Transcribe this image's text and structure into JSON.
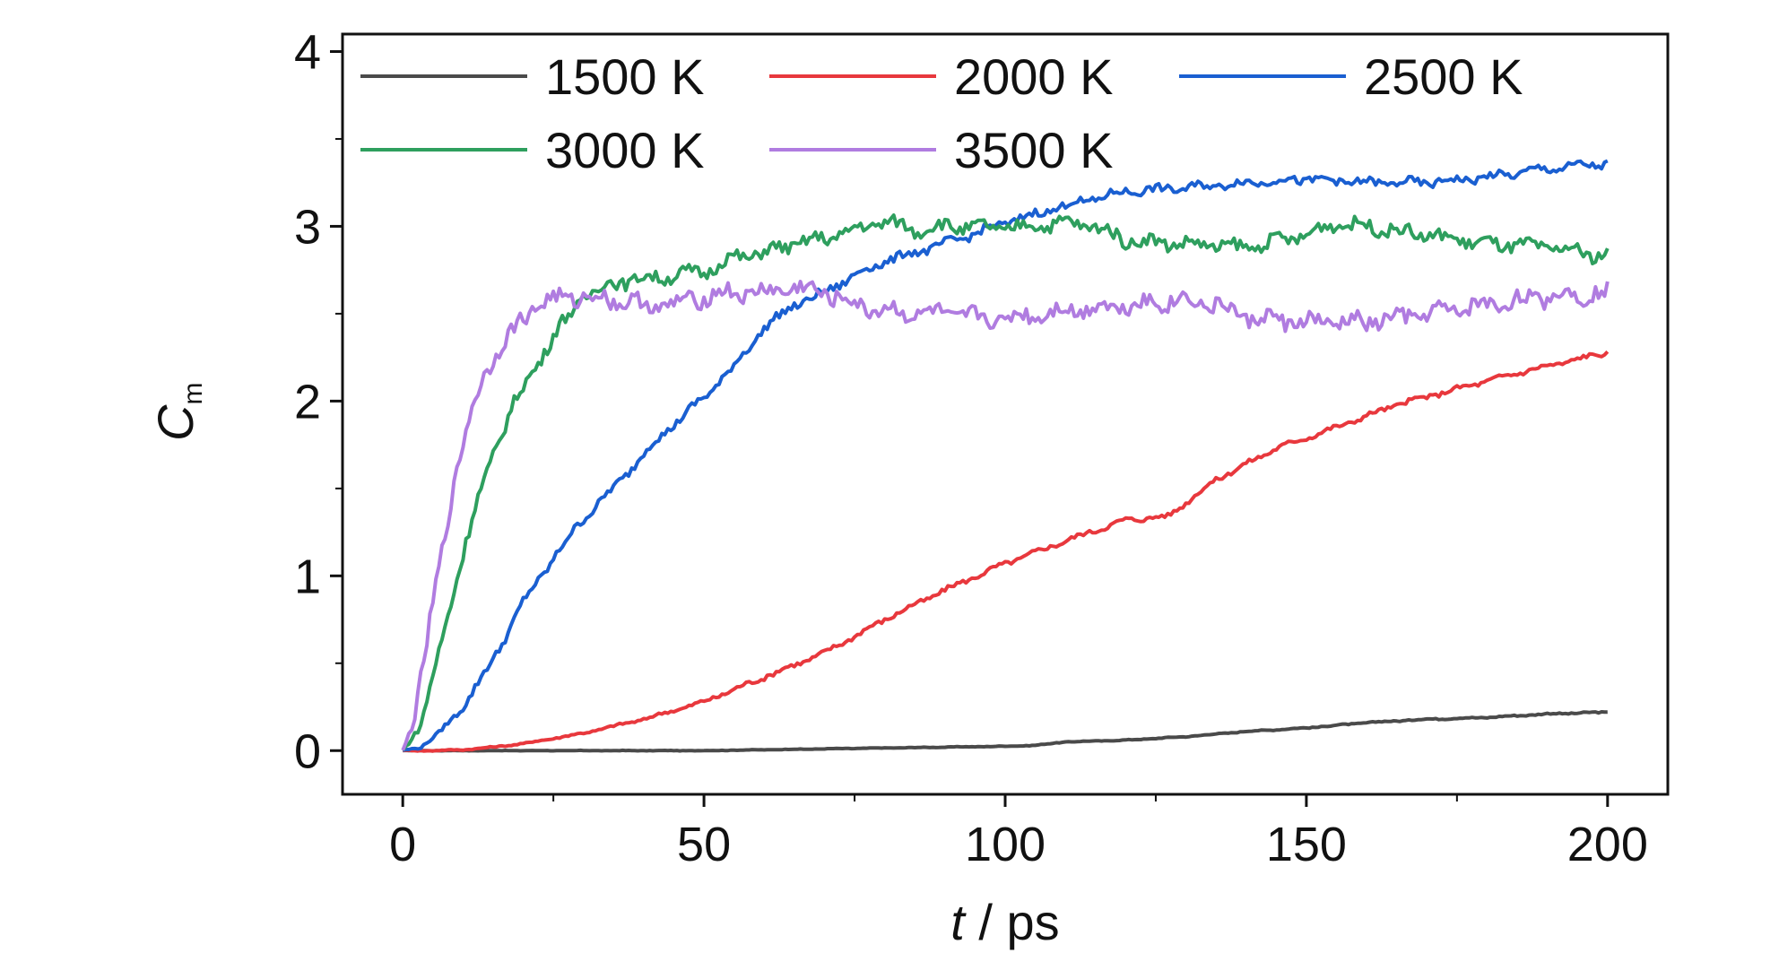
{
  "chart_data": {
    "type": "line",
    "xlabel": {
      "var": "t",
      "unit": " / ps"
    },
    "ylabel": {
      "var": "C",
      "sub": "m"
    },
    "xlim": [
      -10,
      210
    ],
    "ylim": [
      -0.25,
      4.1
    ],
    "x_ticks": [
      0,
      50,
      100,
      150,
      200
    ],
    "x_tick_labels": [
      "0",
      "50",
      "100",
      "150",
      "200"
    ],
    "y_ticks": [
      0,
      1,
      2,
      3,
      4
    ],
    "y_tick_labels": [
      "0",
      "1",
      "2",
      "3",
      "4"
    ],
    "grid": false,
    "legend_position": "top-left",
    "series": [
      {
        "name": "1500 K",
        "color": "#4a4a4a",
        "x": [
          0,
          10,
          20,
          30,
          40,
          50,
          60,
          70,
          80,
          90,
          100,
          105,
          110,
          120,
          130,
          140,
          150,
          160,
          170,
          180,
          190,
          200
        ],
        "y": [
          0,
          0,
          0,
          0,
          0,
          0,
          0.005,
          0.01,
          0.015,
          0.02,
          0.025,
          0.03,
          0.05,
          0.06,
          0.08,
          0.11,
          0.13,
          0.16,
          0.18,
          0.19,
          0.21,
          0.22
        ]
      },
      {
        "name": "2000 K",
        "color": "#e8383d",
        "x": [
          0,
          5,
          10,
          15,
          20,
          30,
          40,
          50,
          60,
          70,
          80,
          90,
          100,
          110,
          120,
          127,
          135,
          145,
          155,
          165,
          175,
          185,
          195,
          200
        ],
        "y": [
          0,
          0,
          0.005,
          0.02,
          0.04,
          0.1,
          0.18,
          0.28,
          0.42,
          0.56,
          0.75,
          0.92,
          1.07,
          1.2,
          1.32,
          1.34,
          1.55,
          1.73,
          1.85,
          1.98,
          2.07,
          2.16,
          2.24,
          2.28
        ]
      },
      {
        "name": "2500 K",
        "color": "#1a5fd1",
        "x": [
          0,
          3,
          6,
          10,
          15,
          20,
          25,
          30,
          35,
          40,
          45,
          50,
          55,
          60,
          65,
          70,
          75,
          80,
          90,
          100,
          110,
          120,
          130,
          140,
          150,
          160,
          170,
          180,
          190,
          200
        ],
        "y": [
          0,
          0.02,
          0.1,
          0.25,
          0.52,
          0.85,
          1.1,
          1.33,
          1.5,
          1.7,
          1.87,
          2.02,
          2.2,
          2.42,
          2.55,
          2.62,
          2.72,
          2.8,
          2.9,
          3.02,
          3.12,
          3.2,
          3.22,
          3.25,
          3.27,
          3.25,
          3.25,
          3.28,
          3.33,
          3.36
        ]
      },
      {
        "name": "3000 K",
        "color": "#2e9f5e",
        "x": [
          0,
          3,
          6,
          9,
          12,
          15,
          18,
          22,
          26,
          30,
          35,
          40,
          45,
          50,
          55,
          60,
          65,
          70,
          75,
          80,
          85,
          90,
          100,
          110,
          115,
          120,
          130,
          140,
          150,
          155,
          160,
          170,
          180,
          190,
          200
        ],
        "y": [
          0,
          0.15,
          0.55,
          1.0,
          1.38,
          1.7,
          1.95,
          2.2,
          2.42,
          2.6,
          2.68,
          2.7,
          2.72,
          2.74,
          2.82,
          2.85,
          2.9,
          2.93,
          2.98,
          3.03,
          2.98,
          3.0,
          2.99,
          3.02,
          3.0,
          2.92,
          2.9,
          2.88,
          2.95,
          3.02,
          3.0,
          2.95,
          2.9,
          2.88,
          2.83
        ]
      },
      {
        "name": "3500 K",
        "color": "#b07ce0",
        "x": [
          0,
          2,
          4,
          6,
          8,
          10,
          12,
          14,
          16,
          18,
          20,
          22,
          25,
          30,
          35,
          40,
          45,
          50,
          55,
          60,
          65,
          70,
          75,
          80,
          85,
          90,
          95,
          100,
          110,
          120,
          130,
          135,
          140,
          150,
          160,
          170,
          180,
          190,
          200
        ],
        "y": [
          0,
          0.2,
          0.6,
          1.05,
          1.45,
          1.75,
          2.0,
          2.2,
          2.3,
          2.38,
          2.48,
          2.55,
          2.58,
          2.6,
          2.58,
          2.55,
          2.55,
          2.6,
          2.62,
          2.62,
          2.65,
          2.62,
          2.55,
          2.52,
          2.5,
          2.5,
          2.48,
          2.47,
          2.52,
          2.55,
          2.58,
          2.55,
          2.48,
          2.45,
          2.45,
          2.5,
          2.55,
          2.6,
          2.62
        ]
      }
    ]
  }
}
